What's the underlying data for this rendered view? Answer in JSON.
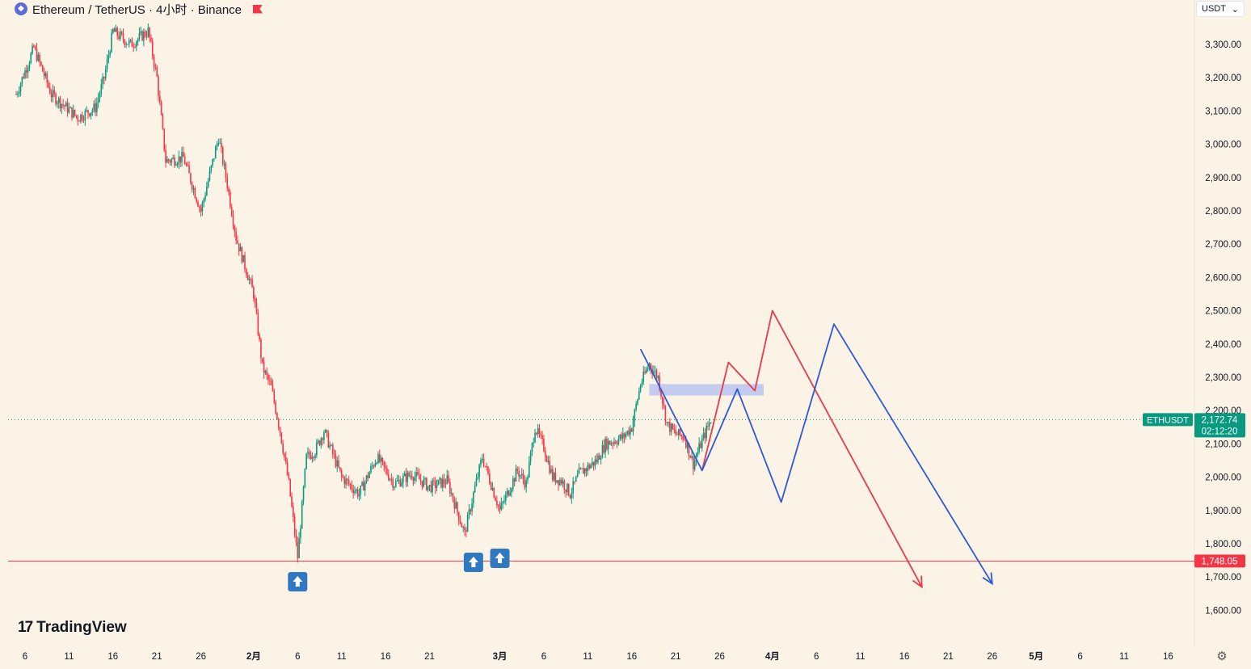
{
  "header": {
    "symbol_title": "Ethereum / TetherUS · 4小时 · Binance",
    "eth_icon": "eth-icon",
    "flag_icon": "flag-icon"
  },
  "currency_select": {
    "value": "USDT",
    "chevron": "⌄"
  },
  "brand": {
    "name": "TradingView"
  },
  "price_labels": {
    "symbol": "ETHUSDT",
    "last_price": "2,172.74",
    "countdown": "02:12:20",
    "support_price": "1,748.05"
  },
  "colors": {
    "up": "#089981",
    "down": "#f23645",
    "support": "#f23645",
    "path_red": "#e83a48",
    "path_blue": "#2f58d8",
    "zone": "#b9c4f0",
    "arrow_marker": "#3079c2",
    "price_tag": "#089981"
  },
  "chart_data": {
    "type": "candlestick",
    "title": "",
    "timeframe": "4小时",
    "y_axis": {
      "range": [
        1550,
        3360
      ],
      "ticks": [
        3300,
        3200,
        3100,
        3000,
        2900,
        2800,
        2700,
        2600,
        2500,
        2400,
        2300,
        2200,
        2100,
        2000,
        1900,
        1800,
        1700,
        1600
      ],
      "tick_labels": [
        "3,300.00",
        "3,200.00",
        "3,100.00",
        "3,000.00",
        "2,900.00",
        "2,800.00",
        "2,700.00",
        "2,600.00",
        "2,500.00",
        "2,400.00",
        "2,300.00",
        "2,200.00",
        "2,100.00",
        "2,000.00",
        "1,900.00",
        "1,800.00",
        "1,700.00",
        "1,600.00"
      ]
    },
    "x_axis": {
      "ticks": [
        {
          "date": "2026-01-06",
          "label": "6"
        },
        {
          "date": "2026-01-11",
          "label": "11"
        },
        {
          "date": "2026-01-16",
          "label": "16"
        },
        {
          "date": "2026-01-21",
          "label": "21"
        },
        {
          "date": "2026-01-26",
          "label": "26"
        },
        {
          "date": "2026-02-01",
          "label": "2月"
        },
        {
          "date": "2026-02-06",
          "label": "6"
        },
        {
          "date": "2026-02-11",
          "label": "11"
        },
        {
          "date": "2026-02-16",
          "label": "16"
        },
        {
          "date": "2026-02-21",
          "label": "21"
        },
        {
          "date": "2026-03-01",
          "label": "3月"
        },
        {
          "date": "2026-03-06",
          "label": "6"
        },
        {
          "date": "2026-03-11",
          "label": "11"
        },
        {
          "date": "2026-03-16",
          "label": "16"
        },
        {
          "date": "2026-03-21",
          "label": "21"
        },
        {
          "date": "2026-03-26",
          "label": "26"
        },
        {
          "date": "2026-04-01",
          "label": "4月"
        },
        {
          "date": "2026-04-06",
          "label": "6"
        },
        {
          "date": "2026-04-11",
          "label": "11"
        },
        {
          "date": "2026-04-16",
          "label": "16"
        },
        {
          "date": "2026-04-21",
          "label": "21"
        },
        {
          "date": "2026-04-26",
          "label": "26"
        },
        {
          "date": "2026-05-01",
          "label": "5月"
        },
        {
          "date": "2026-05-06",
          "label": "6"
        },
        {
          "date": "2026-05-11",
          "label": "11"
        },
        {
          "date": "2026-05-16",
          "label": "16"
        }
      ]
    },
    "price_anchors": [
      [
        "2026-01-05",
        3150
      ],
      [
        "2026-01-07",
        3290
      ],
      [
        "2026-01-09",
        3150
      ],
      [
        "2026-01-12",
        3080
      ],
      [
        "2026-01-14",
        3110
      ],
      [
        "2026-01-15",
        3200
      ],
      [
        "2026-01-16",
        3340
      ],
      [
        "2026-01-18",
        3300
      ],
      [
        "2026-01-20",
        3340
      ],
      [
        "2026-01-21",
        3200
      ],
      [
        "2026-01-22",
        2950
      ],
      [
        "2026-01-24",
        2960
      ],
      [
        "2026-01-26",
        2800
      ],
      [
        "2026-01-28",
        3020
      ],
      [
        "2026-01-29",
        2880
      ],
      [
        "2026-01-30",
        2720
      ],
      [
        "2026-02-01",
        2550
      ],
      [
        "2026-02-02",
        2330
      ],
      [
        "2026-02-03",
        2270
      ],
      [
        "2026-02-04",
        2140
      ],
      [
        "2026-02-05",
        1980
      ],
      [
        "2026-02-06",
        1760
      ],
      [
        "2026-02-07",
        2060
      ],
      [
        "2026-02-08",
        2080
      ],
      [
        "2026-02-09",
        2140
      ],
      [
        "2026-02-11",
        2000
      ],
      [
        "2026-02-13",
        1950
      ],
      [
        "2026-02-15",
        2060
      ],
      [
        "2026-02-17",
        1980
      ],
      [
        "2026-02-19",
        2010
      ],
      [
        "2026-02-21",
        1970
      ],
      [
        "2026-02-23",
        1990
      ],
      [
        "2026-02-25",
        1830
      ],
      [
        "2026-02-26",
        1950
      ],
      [
        "2026-02-27",
        2060
      ],
      [
        "2026-02-28",
        1980
      ],
      [
        "2026-03-01",
        1900
      ],
      [
        "2026-03-02",
        1960
      ],
      [
        "2026-03-03",
        2020
      ],
      [
        "2026-03-04",
        1980
      ],
      [
        "2026-03-05",
        2150
      ],
      [
        "2026-03-06",
        2090
      ],
      [
        "2026-03-07",
        2000
      ],
      [
        "2026-03-08",
        1990
      ],
      [
        "2026-03-09",
        1950
      ],
      [
        "2026-03-10",
        2010
      ],
      [
        "2026-03-12",
        2050
      ],
      [
        "2026-03-13",
        2100
      ],
      [
        "2026-03-15",
        2120
      ],
      [
        "2026-03-16",
        2150
      ],
      [
        "2026-03-17",
        2280
      ],
      [
        "2026-03-18",
        2340
      ],
      [
        "2026-03-19",
        2300
      ],
      [
        "2026-03-20",
        2160
      ],
      [
        "2026-03-21",
        2130
      ],
      [
        "2026-03-22",
        2120
      ],
      [
        "2026-03-23",
        2040
      ],
      [
        "2026-03-24",
        2110
      ],
      [
        "2026-03-25",
        2172.74
      ]
    ],
    "last_price": 2172.74,
    "support_level": 1748.05,
    "resistance_zone": {
      "from": "2026-03-18",
      "to": "2026-03-31",
      "low": 2255,
      "high": 2270
    },
    "projections": [
      {
        "color": "red",
        "points": [
          [
            "2026-03-24",
            2020
          ],
          [
            "2026-03-27",
            2345
          ],
          [
            "2026-03-30",
            2260
          ],
          [
            "2026-04-01",
            2500
          ],
          [
            "2026-04-18",
            1670
          ]
        ]
      },
      {
        "color": "blue",
        "points": [
          [
            "2026-03-17",
            2385
          ],
          [
            "2026-03-24",
            2020
          ],
          [
            "2026-03-28",
            2265
          ],
          [
            "2026-04-02",
            1925
          ],
          [
            "2026-04-08",
            2460
          ],
          [
            "2026-04-26",
            1680
          ]
        ]
      }
    ],
    "markers": [
      {
        "type": "arrow-up",
        "date": "2026-02-06"
      },
      {
        "type": "arrow-up",
        "date": "2026-02-26"
      },
      {
        "type": "arrow-up",
        "date": "2026-03-01"
      }
    ]
  }
}
